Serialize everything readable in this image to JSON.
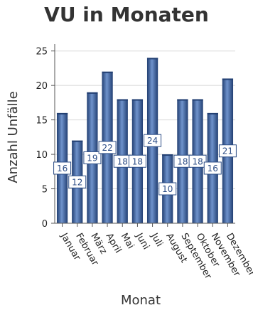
{
  "chart_data": {
    "type": "bar",
    "title": "VU in Monaten",
    "xlabel": "Monat",
    "ylabel": "Anzahl Unfälle",
    "categories": [
      "Januar",
      "Februar",
      "März",
      "April",
      "Mai",
      "Juni",
      "Juli",
      "August",
      "September",
      "Oktober",
      "November",
      "Dezember"
    ],
    "values": [
      16,
      12,
      19,
      22,
      18,
      18,
      24,
      10,
      18,
      18,
      16,
      21
    ],
    "ylim": [
      0,
      26
    ],
    "yticks": [
      0,
      5,
      10,
      15,
      20,
      25
    ],
    "grid": true,
    "data_labels": true,
    "colors": {
      "bar": "#3a5f9c",
      "bar_dark": "#223f72",
      "bar_light": "#6f93cc",
      "grid": "#d8d8d8",
      "label_border": "#2c4d86"
    }
  }
}
